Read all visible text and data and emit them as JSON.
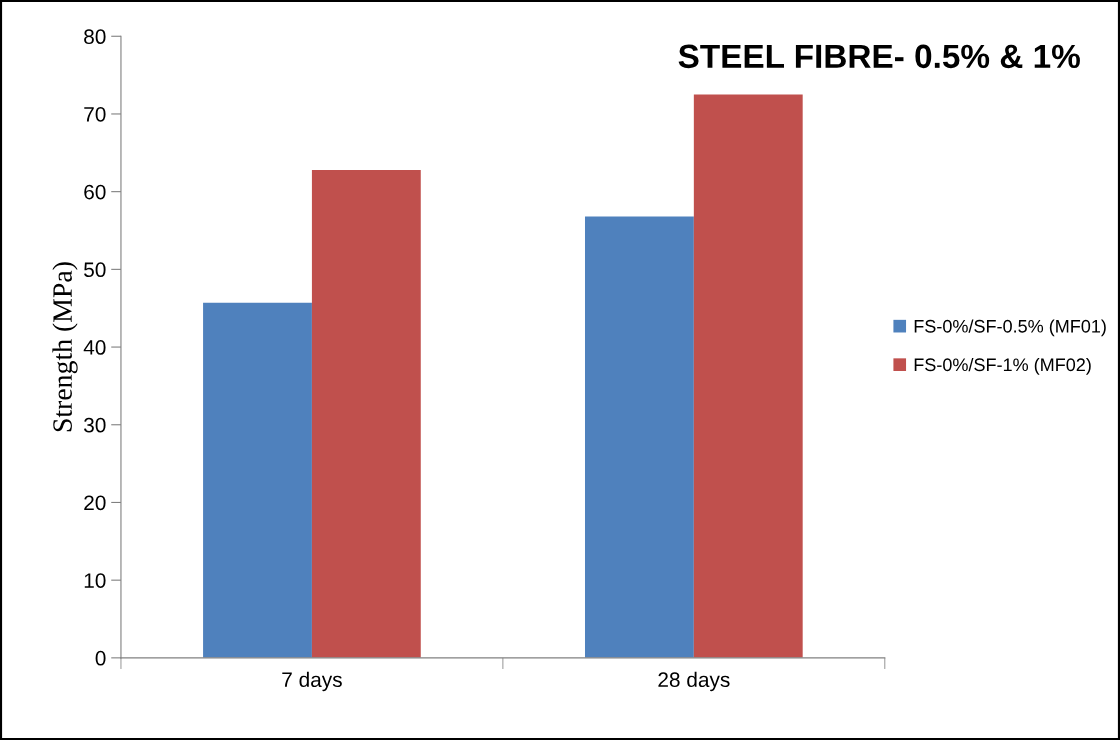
{
  "chart_data": {
    "type": "bar",
    "title": "STEEL FIBRE- 0.5% & 1%",
    "ylabel": "Strength (MPa)",
    "categories": [
      "7 days",
      "28 days"
    ],
    "series": [
      {
        "name": "FS-0%/SF-0.5% (MF01)",
        "color": "#4f81bd",
        "values": [
          45.7,
          56.8
        ]
      },
      {
        "name": "FS-0%/SF-1% (MF02)",
        "color": "#c0504d",
        "values": [
          62.8,
          72.5
        ]
      }
    ],
    "ylim": [
      0,
      80
    ],
    "yticks": [
      0,
      10,
      20,
      30,
      40,
      50,
      60,
      70,
      80
    ],
    "grid": false,
    "legend": "right"
  }
}
